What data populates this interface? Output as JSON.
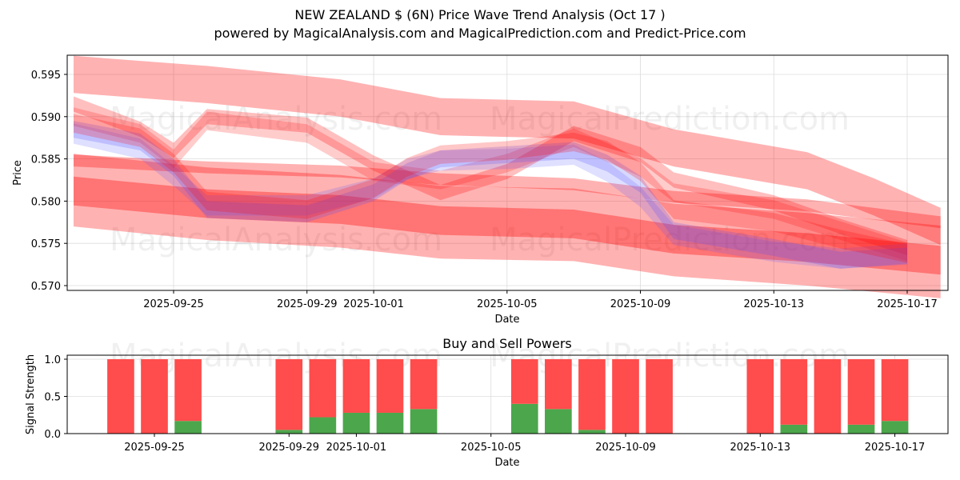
{
  "header": {
    "title": "NEW ZEALAND $ (6N) Price Wave Trend Analysis (Oct 17 )",
    "subtitle": "powered by MagicalAnalysis.com and MagicalPrediction.com and Predict-Price.com"
  },
  "watermarks": [
    "MagicalAnalysis.com",
    "MagicalPrediction.com"
  ],
  "colors": {
    "red_band": "#ff0000",
    "blue_band": "#4d4dff",
    "buy": "#4ca64c",
    "sell": "#ff4c4c",
    "grid": "#dcdcdc"
  },
  "chart_data": [
    {
      "type": "area",
      "title": "",
      "xlabel": "Date",
      "ylabel": "Price",
      "xlim": [
        "2025-09-21",
        "2025-10-18"
      ],
      "ylim": [
        0.5695,
        0.5973
      ],
      "grid": true,
      "x_ticks": [
        "2025-09-25",
        "2025-09-29",
        "2025-10-01",
        "2025-10-05",
        "2025-10-09",
        "2025-10-13",
        "2025-10-17"
      ],
      "y_ticks": [
        "0.570",
        "0.575",
        "0.580",
        "0.585",
        "0.590",
        "0.595"
      ],
      "bands": [
        {
          "name": "upper-wide-red",
          "color": "red",
          "opacity": 0.3,
          "half_width": 0.0022,
          "x": [
            "2025-09-22",
            "2025-09-26",
            "2025-09-30",
            "2025-10-03",
            "2025-10-07",
            "2025-10-10",
            "2025-10-14",
            "2025-10-16",
            "2025-10-18"
          ],
          "y": [
            0.595,
            0.5938,
            0.5922,
            0.59,
            0.5896,
            0.5863,
            0.5836,
            0.5805,
            0.577
          ]
        },
        {
          "name": "lower-wide-red",
          "color": "red",
          "opacity": 0.3,
          "half_width": 0.0043,
          "x": [
            "2025-09-22",
            "2025-09-26",
            "2025-09-30",
            "2025-10-03",
            "2025-10-07",
            "2025-10-10",
            "2025-10-14",
            "2025-10-18"
          ],
          "y": [
            0.5813,
            0.5797,
            0.5788,
            0.5775,
            0.5772,
            0.5754,
            0.5743,
            0.5728
          ]
        },
        {
          "name": "lower-core-red",
          "color": "red",
          "opacity": 0.35,
          "half_width": 0.0017,
          "x": [
            "2025-09-22",
            "2025-09-26",
            "2025-09-30",
            "2025-10-03",
            "2025-10-07",
            "2025-10-10",
            "2025-10-14",
            "2025-10-18"
          ],
          "y": [
            0.5812,
            0.5797,
            0.579,
            0.5777,
            0.5773,
            0.5755,
            0.5745,
            0.573
          ]
        },
        {
          "name": "mid-thin-red",
          "color": "red",
          "opacity": 0.3,
          "half_width": 0.0007,
          "x": [
            "2025-09-22",
            "2025-09-26",
            "2025-09-30",
            "2025-10-03",
            "2025-10-07",
            "2025-10-10",
            "2025-10-14",
            "2025-10-18"
          ],
          "y": [
            0.5848,
            0.584,
            0.5835,
            0.5826,
            0.582,
            0.5805,
            0.5795,
            0.5775
          ]
        },
        {
          "name": "upper-wave-red",
          "color": "red",
          "opacity": 0.25,
          "half_width": 0.0009,
          "x": [
            "2025-09-22",
            "2025-09-24",
            "2025-09-25",
            "2025-09-26",
            "2025-09-29",
            "2025-10-01",
            "2025-10-03",
            "2025-10-05",
            "2025-10-07",
            "2025-10-09",
            "2025-10-10",
            "2025-10-13",
            "2025-10-15",
            "2025-10-17"
          ],
          "y": [
            0.5915,
            0.5885,
            0.586,
            0.59,
            0.589,
            0.5845,
            0.581,
            0.5835,
            0.588,
            0.5855,
            0.5825,
            0.5798,
            0.577,
            0.5745
          ]
        },
        {
          "name": "upper-wave-red-2",
          "color": "red",
          "opacity": 0.2,
          "half_width": 0.0011,
          "x": [
            "2025-09-22",
            "2025-09-24",
            "2025-09-25",
            "2025-09-26",
            "2025-09-29",
            "2025-10-01",
            "2025-10-03",
            "2025-10-05",
            "2025-10-07",
            "2025-10-09",
            "2025-10-10",
            "2025-10-13",
            "2025-10-15",
            "2025-10-17"
          ],
          "y": [
            0.59,
            0.588,
            0.585,
            0.5895,
            0.588,
            0.5835,
            0.5825,
            0.5845,
            0.5875,
            0.584,
            0.581,
            0.579,
            0.5765,
            0.574
          ]
        },
        {
          "name": "main-wave-blue",
          "color": "blue",
          "opacity": 0.22,
          "half_width": 0.001,
          "x": [
            "2025-09-22",
            "2025-09-24",
            "2025-09-25",
            "2025-09-26",
            "2025-09-29",
            "2025-10-01",
            "2025-10-02",
            "2025-10-03",
            "2025-10-05",
            "2025-10-07",
            "2025-10-08",
            "2025-10-09",
            "2025-10-10",
            "2025-10-13",
            "2025-10-15",
            "2025-10-17"
          ],
          "y": [
            0.5885,
            0.587,
            0.584,
            0.579,
            0.5785,
            0.581,
            0.5835,
            0.585,
            0.5855,
            0.586,
            0.5845,
            0.582,
            0.5765,
            0.5745,
            0.573,
            0.5735
          ]
        },
        {
          "name": "main-wave-blue-2",
          "color": "blue",
          "opacity": 0.18,
          "half_width": 0.0012,
          "x": [
            "2025-09-22",
            "2025-09-24",
            "2025-09-25",
            "2025-09-26",
            "2025-09-29",
            "2025-10-01",
            "2025-10-02",
            "2025-10-03",
            "2025-10-05",
            "2025-10-07",
            "2025-10-08",
            "2025-10-09",
            "2025-10-10",
            "2025-10-13",
            "2025-10-15",
            "2025-10-17"
          ],
          "y": [
            0.588,
            0.5862,
            0.583,
            0.5795,
            0.5795,
            0.5815,
            0.5838,
            0.5848,
            0.585,
            0.5855,
            0.5835,
            0.5805,
            0.576,
            0.574,
            0.5732,
            0.5738
          ]
        },
        {
          "name": "main-wave-red",
          "color": "red",
          "opacity": 0.22,
          "half_width": 0.0011,
          "x": [
            "2025-09-22",
            "2025-09-24",
            "2025-09-25",
            "2025-09-26",
            "2025-09-29",
            "2025-10-01",
            "2025-10-02",
            "2025-10-03",
            "2025-10-05",
            "2025-10-07",
            "2025-10-08",
            "2025-10-09",
            "2025-10-10",
            "2025-10-13",
            "2025-10-15",
            "2025-10-17"
          ],
          "y": [
            0.5892,
            0.5875,
            0.5845,
            0.58,
            0.579,
            0.5815,
            0.584,
            0.5855,
            0.586,
            0.587,
            0.586,
            0.5835,
            0.579,
            0.5775,
            0.5755,
            0.5738
          ]
        }
      ]
    },
    {
      "type": "bar",
      "title": "Buy and Sell Powers",
      "xlabel": "Date",
      "ylabel": "Signal Strength",
      "xlim": [
        "2025-09-22",
        "2025-10-18"
      ],
      "ylim": [
        0,
        1.05
      ],
      "grid": true,
      "x_ticks": [
        "2025-09-25",
        "2025-09-29",
        "2025-10-01",
        "2025-10-05",
        "2025-10-09",
        "2025-10-13",
        "2025-10-17"
      ],
      "y_ticks": [
        "0.0",
        "0.5",
        "1.0"
      ],
      "categories": [
        "2025-09-24",
        "2025-09-25",
        "2025-09-26",
        "2025-09-29",
        "2025-09-30",
        "2025-10-01",
        "2025-10-02",
        "2025-10-03",
        "2025-10-06",
        "2025-10-07",
        "2025-10-08",
        "2025-10-09",
        "2025-10-10",
        "2025-10-13",
        "2025-10-14",
        "2025-10-15",
        "2025-10-16",
        "2025-10-17"
      ],
      "series": [
        {
          "name": "Buy",
          "values": [
            0.0,
            0.0,
            0.17,
            0.05,
            0.22,
            0.28,
            0.28,
            0.33,
            0.4,
            0.33,
            0.05,
            0.0,
            0.0,
            0.0,
            0.12,
            0.0,
            0.12,
            0.17
          ]
        },
        {
          "name": "Sell",
          "values": [
            1.0,
            1.0,
            0.83,
            0.95,
            0.78,
            0.72,
            0.72,
            0.67,
            0.6,
            0.67,
            0.95,
            1.0,
            1.0,
            1.0,
            0.88,
            1.0,
            0.88,
            0.83
          ]
        }
      ]
    }
  ]
}
